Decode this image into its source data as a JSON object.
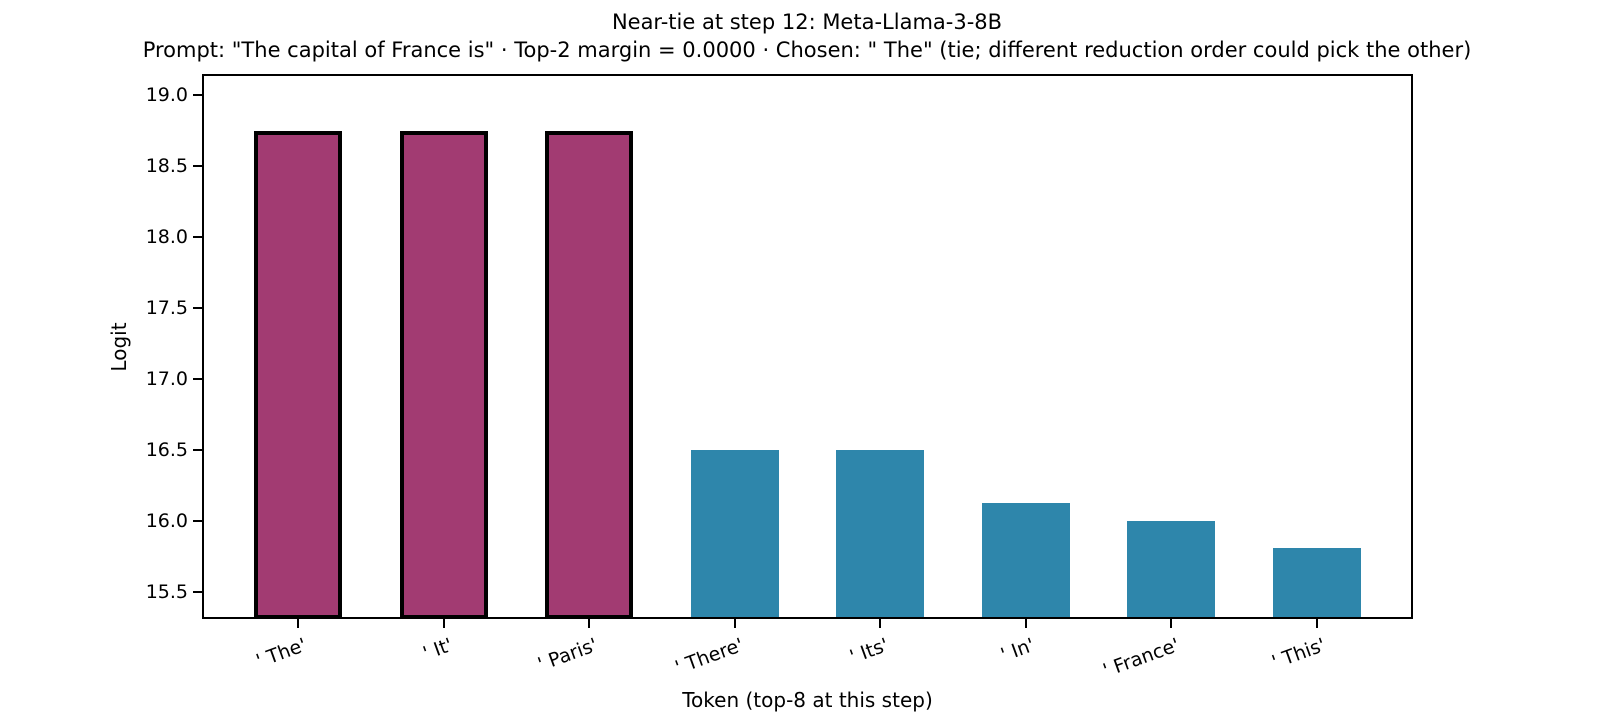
{
  "chart_data": {
    "type": "bar",
    "title": "Near-tie at step 12: Meta-Llama-3-8B",
    "subtitle": "Prompt: \"The capital of France is\" · Top-2 margin = 0.0000 · Chosen: \" The\" (tie; different reduction order could pick the other)",
    "xlabel": "Token (top-8 at this step)",
    "ylabel": "Logit",
    "categories": [
      "' The'",
      "' It'",
      "' Paris'",
      "' There'",
      "' Its'",
      "' In'",
      "' France'",
      "' This'"
    ],
    "values": [
      18.75,
      18.75,
      18.75,
      16.5,
      16.5,
      16.125,
      16.0,
      15.8125
    ],
    "highlighted": [
      true,
      true,
      true,
      false,
      false,
      false,
      false,
      false
    ],
    "yticks": [
      15.5,
      16.0,
      16.5,
      17.0,
      17.5,
      18.0,
      18.5,
      19.0
    ],
    "ylim": [
      15.31,
      19.15
    ],
    "xtick_rotation_deg": 20,
    "grid": false,
    "legend": null,
    "colors": {
      "bar": "#2E86AB",
      "highlight_fill": "#A23B72",
      "highlight_edge": "#000000",
      "text": "#000000",
      "spine": "#000000",
      "background": "#ffffff"
    }
  }
}
